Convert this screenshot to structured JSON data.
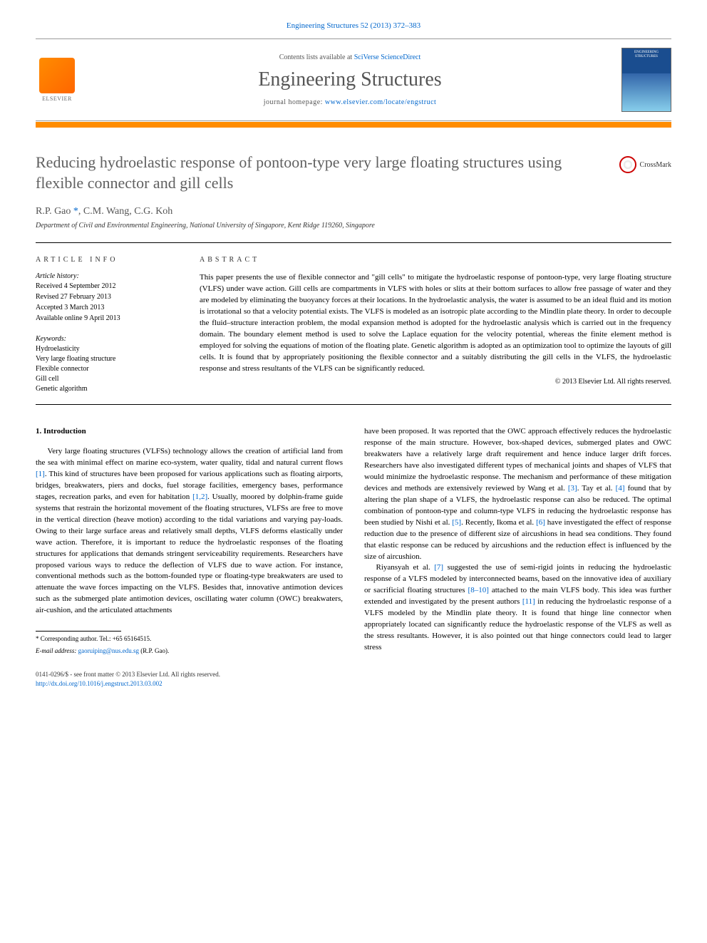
{
  "header": {
    "citation": "Engineering Structures 52 (2013) 372–383",
    "publisher": "ELSEVIER",
    "contents_prefix": "Contents lists available at ",
    "contents_link": "SciVerse ScienceDirect",
    "journal": "Engineering Structures",
    "homepage_prefix": "journal homepage: ",
    "homepage_url": "www.elsevier.com/locate/engstruct",
    "cover_label": "ENGINEERING STRUCTURES"
  },
  "crossmark": "CrossMark",
  "title": "Reducing hydroelastic response of pontoon-type very large floating structures using flexible connector and gill cells",
  "authors_html": "R.P. Gao <span class='ref'>*</span>, C.M. Wang, C.G. Koh",
  "affiliation": "Department of Civil and Environmental Engineering, National University of Singapore, Kent Ridge 119260, Singapore",
  "article_info": {
    "label": "ARTICLE INFO",
    "history_label": "Article history:",
    "history": [
      "Received 4 September 2012",
      "Revised 27 February 2013",
      "Accepted 3 March 2013",
      "Available online 9 April 2013"
    ],
    "keywords_label": "Keywords:",
    "keywords": [
      "Hydroelasticity",
      "Very large floating structure",
      "Flexible connector",
      "Gill cell",
      "Genetic algorithm"
    ]
  },
  "abstract": {
    "label": "ABSTRACT",
    "text": "This paper presents the use of flexible connector and \"gill cells\" to mitigate the hydroelastic response of pontoon-type, very large floating structure (VLFS) under wave action. Gill cells are compartments in VLFS with holes or slits at their bottom surfaces to allow free passage of water and they are modeled by eliminating the buoyancy forces at their locations. In the hydroelastic analysis, the water is assumed to be an ideal fluid and its motion is irrotational so that a velocity potential exists. The VLFS is modeled as an isotropic plate according to the Mindlin plate theory. In order to decouple the fluid–structure interaction problem, the modal expansion method is adopted for the hydroelastic analysis which is carried out in the frequency domain. The boundary element method is used to solve the Laplace equation for the velocity potential, whereas the finite element method is employed for solving the equations of motion of the floating plate. Genetic algorithm is adopted as an optimization tool to optimize the layouts of gill cells. It is found that by appropriately positioning the flexible connector and a suitably distributing the gill cells in the VLFS, the hydroelastic response and stress resultants of the VLFS can be significantly reduced.",
    "copyright": "© 2013 Elsevier Ltd. All rights reserved."
  },
  "body": {
    "heading": "1. Introduction",
    "col1_p1": "Very large floating structures (VLFSs) technology allows the creation of artificial land from the sea with minimal effect on marine eco-system, water quality, tidal and natural current flows [1]. This kind of structures have been proposed for various applications such as floating airports, bridges, breakwaters, piers and docks, fuel storage facilities, emergency bases, performance stages, recreation parks, and even for habitation [1,2]. Usually, moored by dolphin-frame guide systems that restrain the horizontal movement of the floating structures, VLFSs are free to move in the vertical direction (heave motion) according to the tidal variations and varying pay-loads. Owing to their large surface areas and relatively small depths, VLFS deforms elastically under wave action. Therefore, it is important to reduce the hydroelastic responses of the floating structures for applications that demands stringent serviceability requirements. Researchers have proposed various ways to reduce the deflection of VLFS due to wave action. For instance, conventional methods such as the bottom-founded type or floating-type breakwaters are used to attenuate the wave forces impacting on the VLFS. Besides that, innovative antimotion devices such as the submerged plate antimotion devices, oscillating water column (OWC) breakwaters, air-cushion, and the articulated attachments",
    "col2_p1": "have been proposed. It was reported that the OWC approach effectively reduces the hydroelastic response of the main structure. However, box-shaped devices, submerged plates and OWC breakwaters have a relatively large draft requirement and hence induce larger drift forces. Researchers have also investigated different types of mechanical joints and shapes of VLFS that would minimize the hydroelastic response. The mechanism and performance of these mitigation devices and methods are extensively reviewed by Wang et al. [3]. Tay et al. [4] found that by altering the plan shape of a VLFS, the hydroelastic response can also be reduced. The optimal combination of pontoon-type and column-type VLFS in reducing the hydroelastic response has been studied by Nishi et al. [5]. Recently, Ikoma et al. [6] have investigated the effect of response reduction due to the presence of different size of aircushions in head sea conditions. They found that elastic response can be reduced by aircushions and the reduction effect is influenced by the size of aircushion.",
    "col2_p2": "Riyansyah et al. [7] suggested the use of semi-rigid joints in reducing the hydroelastic response of a VLFS modeled by interconnected beams, based on the innovative idea of auxiliary or sacrificial floating structures [8–10] attached to the main VLFS body. This idea was further extended and investigated by the present authors [11] in reducing the hydroelastic response of a VLFS modeled by the Mindlin plate theory. It is found that hinge line connector when appropriately located can significantly reduce the hydroelastic response of the VLFS as well as the stress resultants. However, it is also pointed out that hinge connectors could lead to larger stress"
  },
  "footnote": {
    "corr": "* Corresponding author. Tel.: +65 65164515.",
    "email_label": "E-mail address: ",
    "email": "gaoruiping@nus.edu.sg",
    "email_suffix": " (R.P. Gao)."
  },
  "footer": {
    "line1": "0141-0296/$ - see front matter © 2013 Elsevier Ltd. All rights reserved.",
    "doi": "http://dx.doi.org/10.1016/j.engstruct.2013.03.002"
  }
}
